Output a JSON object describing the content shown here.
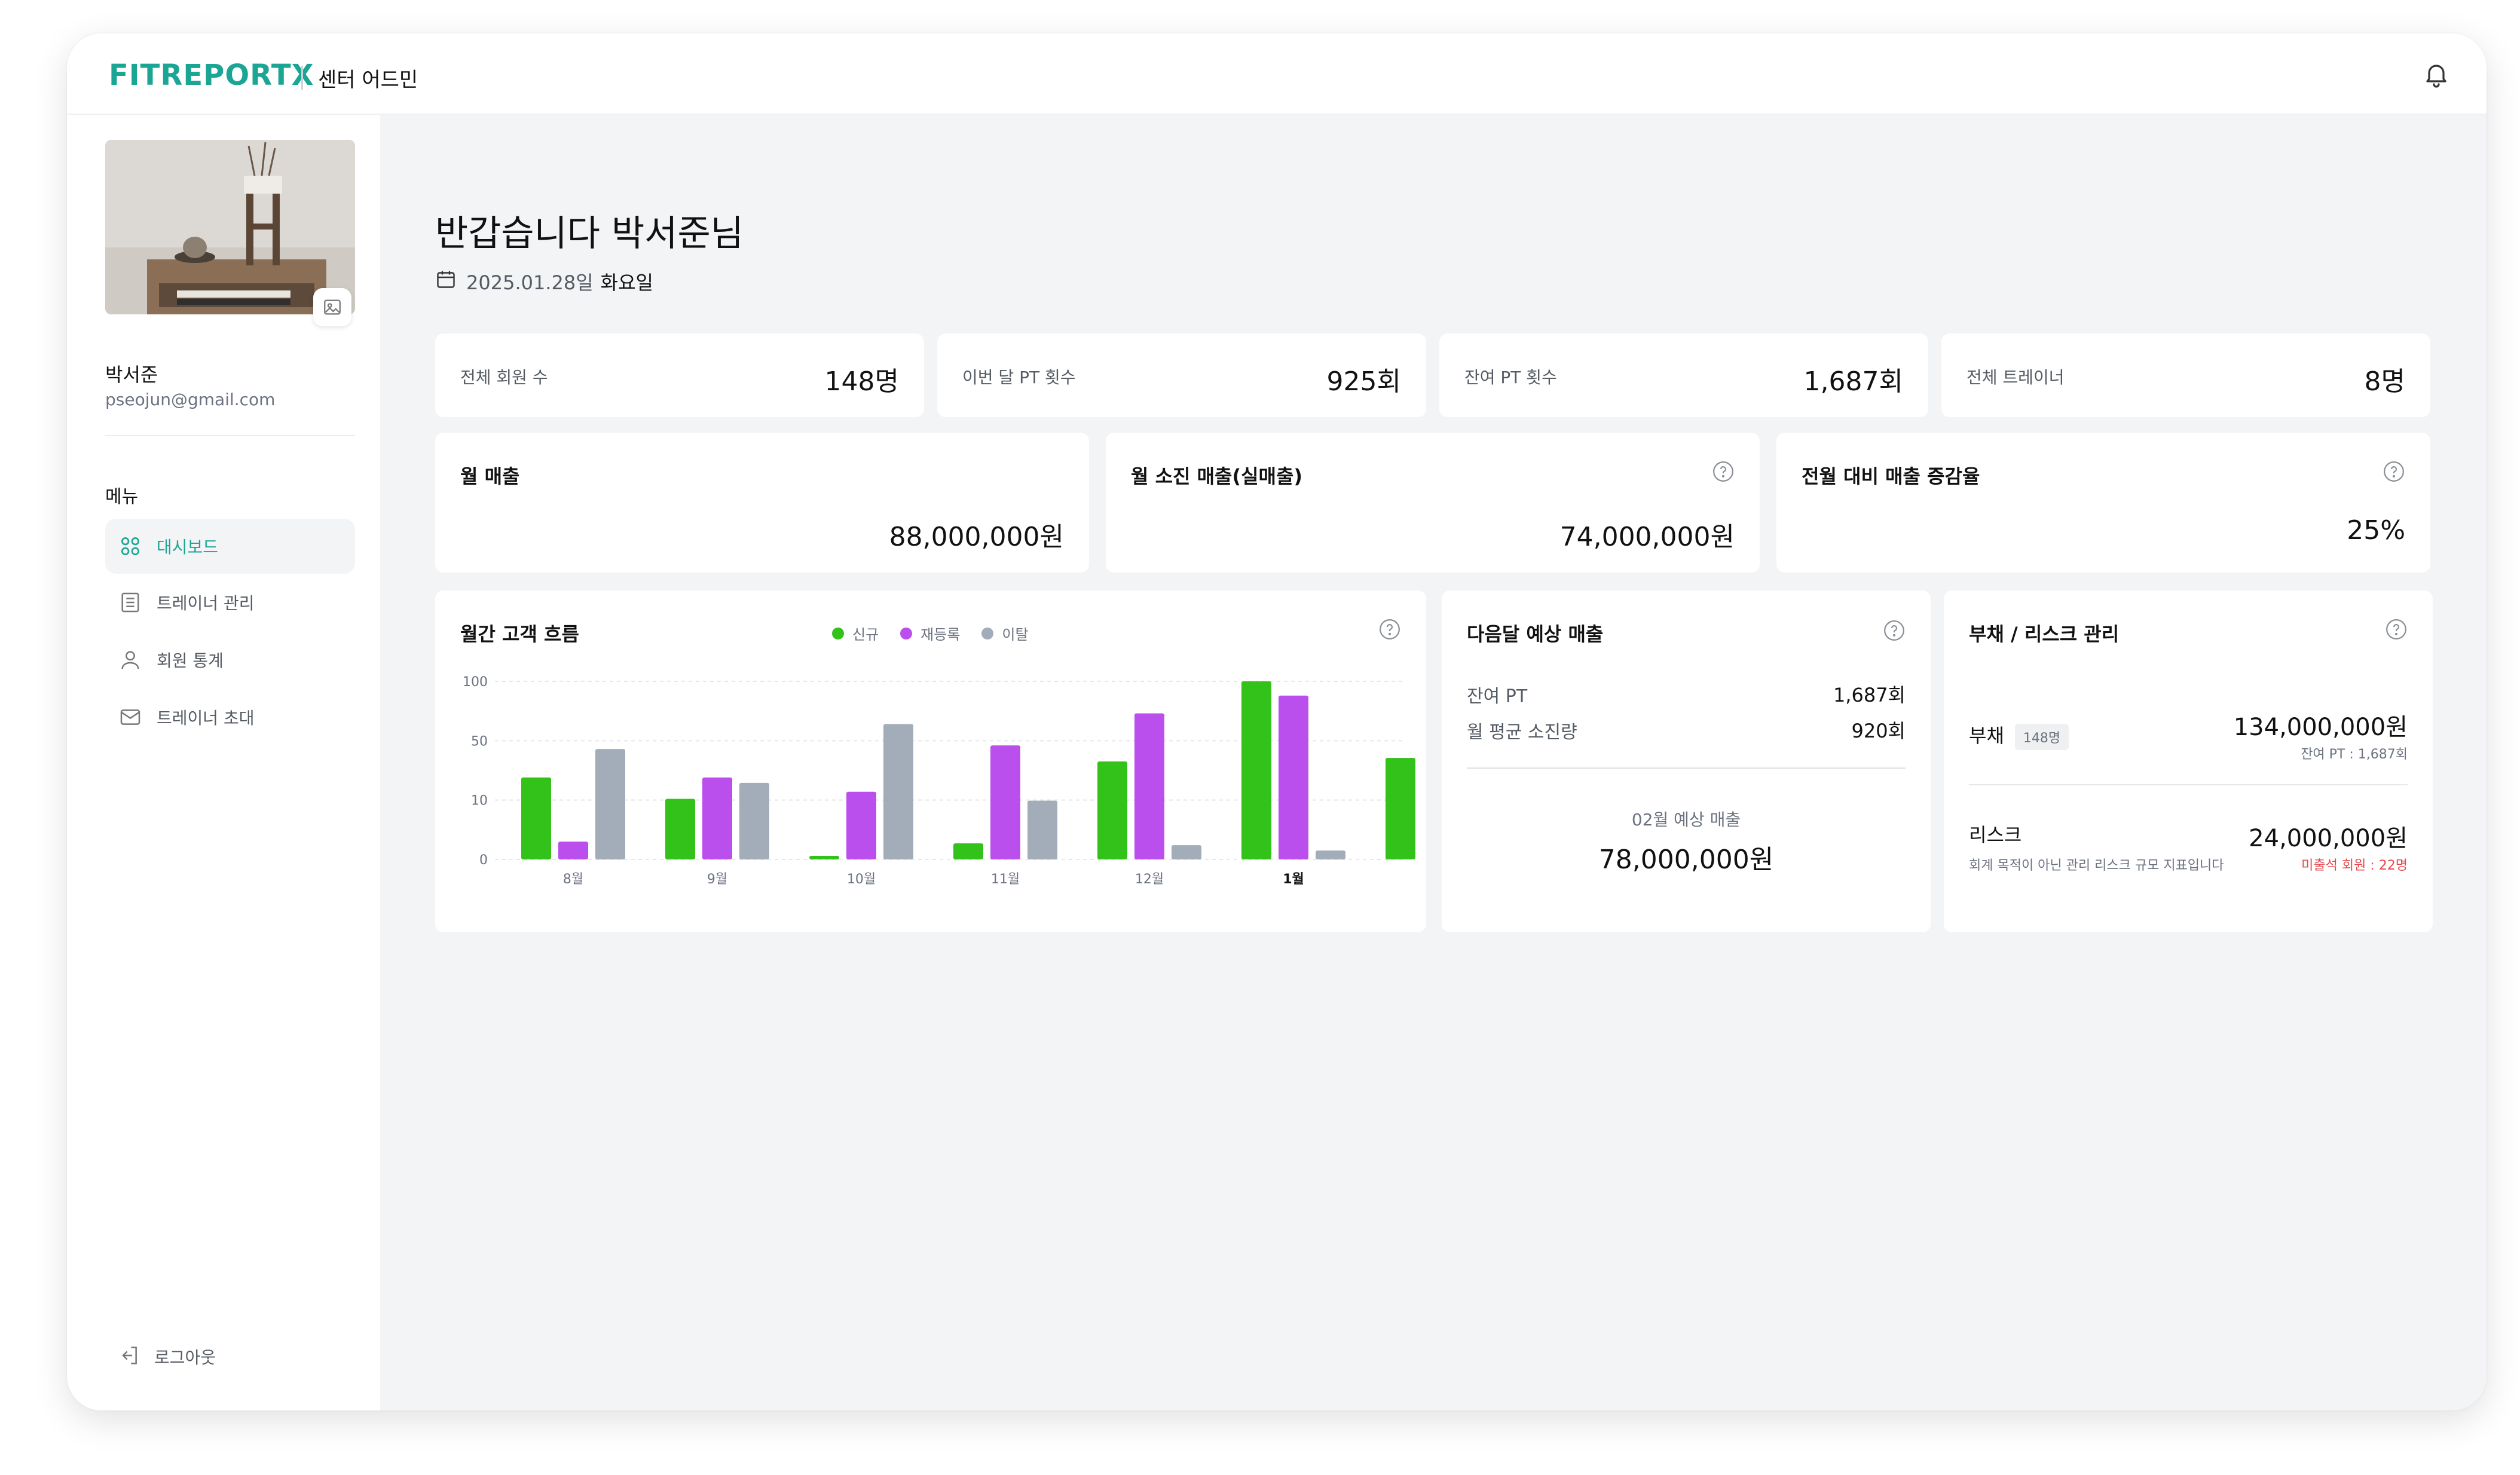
{
  "app": {
    "logo": "FITREPORTX",
    "subtitle": "센터 어드민"
  },
  "profile": {
    "name": "박서준",
    "email": "pseojun@gmail.com"
  },
  "menu": {
    "title": "메뉴",
    "items": [
      {
        "label": "대시보드",
        "icon": "grid-icon",
        "active": true
      },
      {
        "label": "트레이너 관리",
        "icon": "list-icon",
        "active": false
      },
      {
        "label": "회원 통계",
        "icon": "user-icon",
        "active": false
      },
      {
        "label": "트레이너 초대",
        "icon": "mail-icon",
        "active": false
      }
    ],
    "logout": "로그아웃"
  },
  "header": {
    "greeting": "반갑습니다 박서준님",
    "date": "2025.01.28일",
    "weekday": "화요일"
  },
  "stats": [
    {
      "label": "전체 회원 수",
      "value": "148명"
    },
    {
      "label": "이번 달 PT 횟수",
      "value": "925회"
    },
    {
      "label": "잔여 PT 횟수",
      "value": "1,687회"
    },
    {
      "label": "전체 트레이너",
      "value": "8명"
    }
  ],
  "revenue": [
    {
      "title": "월 매출",
      "value": "88,000,000원",
      "help": false
    },
    {
      "title": "월 소진 매출(실매출)",
      "value": "74,000,000원",
      "help": true
    },
    {
      "title": "전월 대비 매출 증감율",
      "value": "25%",
      "help": true
    }
  ],
  "flow": {
    "title": "월간 고객 흐름",
    "legend": [
      "신규",
      "재등록",
      "이탈"
    ]
  },
  "forecast": {
    "title": "다음달 예상 매출",
    "rows": [
      {
        "label": "잔여 PT",
        "value": "1,687회"
      },
      {
        "label": "월 평균 소진량",
        "value": "920회"
      }
    ],
    "forecast_label": "02월 예상 매출",
    "forecast_value": "78,000,000원"
  },
  "risk": {
    "title": "부채 / 리스크 관리",
    "debt_label": "부채",
    "debt_badge": "148명",
    "debt_value": "134,000,000원",
    "debt_sub": "잔여 PT : 1,687회",
    "risk_label": "리스크",
    "risk_desc": "회계 목적이 아닌 관리 리스크 규모 지표입니다",
    "risk_value": "24,000,000원",
    "risk_sub": "미출석 회원 : 22명"
  },
  "colors": {
    "brand": "#1aa594",
    "new": "#33c21a",
    "rereg": "#bb4fee",
    "churn": "#a3acb9",
    "alert": "#e5484d"
  },
  "chart_data": {
    "type": "bar",
    "categories": [
      "8월",
      "9월",
      "10월",
      "11월",
      "12월",
      "1월",
      ""
    ],
    "y_ticks": [
      "100",
      "50",
      "10",
      "0"
    ],
    "highlight_category": "1월",
    "series": [
      {
        "name": "신규",
        "values": [
          46,
          34,
          2,
          9,
          55,
          100,
          57
        ]
      },
      {
        "name": "재등록",
        "values": [
          10,
          46,
          38,
          64,
          82,
          92,
          null
        ]
      },
      {
        "name": "이탈",
        "values": [
          62,
          43,
          76,
          33,
          8,
          5,
          null
        ]
      }
    ],
    "ylim": [
      0,
      100
    ],
    "grid": true
  }
}
